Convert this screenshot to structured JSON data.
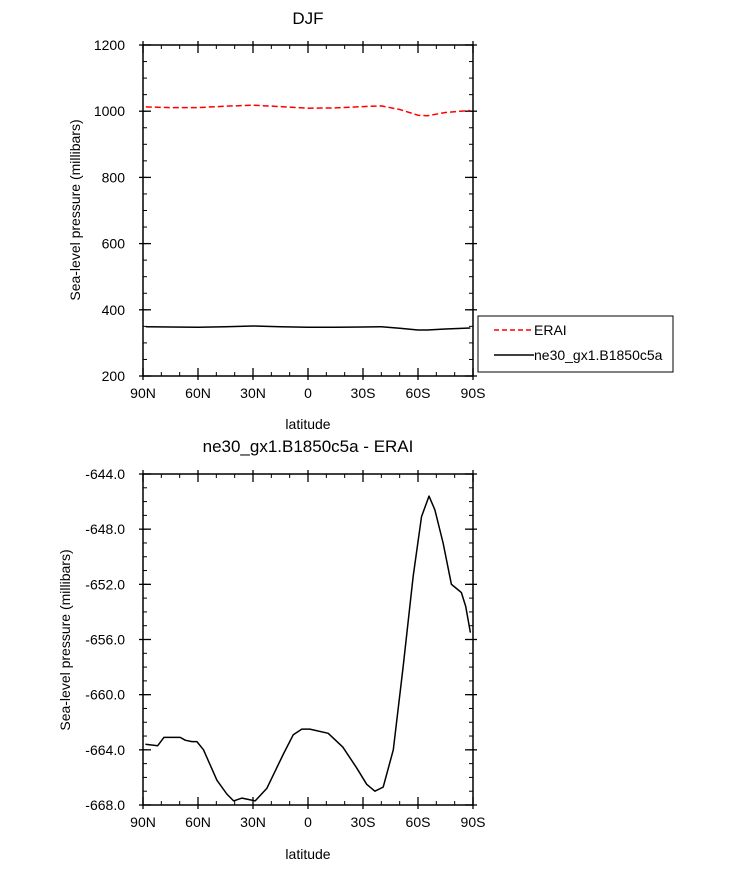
{
  "chart_data": [
    {
      "type": "line",
      "title": "DJF",
      "xlabel": "latitude",
      "ylabel": "Sea-level pressure (millibars)",
      "xlim": [
        90,
        -90
      ],
      "ylim": [
        200,
        1200
      ],
      "x_ticks": [
        90,
        60,
        30,
        0,
        -30,
        -60,
        -90
      ],
      "x_tick_labels": [
        "90N",
        "60N",
        "30N",
        "0",
        "30S",
        "60S",
        "90S"
      ],
      "y_ticks": [
        200,
        400,
        600,
        800,
        1000,
        1200
      ],
      "y_tick_labels": [
        "200",
        "400",
        "600",
        "800",
        "1000",
        "1200"
      ],
      "x_minor_step": 10,
      "y_minor_step": 50,
      "legend": {
        "placement": "right",
        "entries": [
          "ERAI",
          "ne30_gx1.B1850c5a"
        ]
      },
      "series": [
        {
          "name": "ERAI",
          "color": "#ff0000",
          "dash": true,
          "x": [
            88.5,
            75,
            60,
            45,
            30,
            15,
            0,
            -15,
            -30,
            -40,
            -50,
            -60,
            -65,
            -75,
            -88.5
          ],
          "y": [
            1013,
            1011,
            1011,
            1015,
            1018,
            1014,
            1009,
            1010,
            1014,
            1016,
            1005,
            988,
            986,
            996,
            1002
          ]
        },
        {
          "name": "ne30_gx1.B1850c5a",
          "color": "#000000",
          "dash": false,
          "x": [
            88.5,
            75,
            60,
            45,
            30,
            15,
            0,
            -15,
            -30,
            -40,
            -50,
            -60,
            -65,
            -75,
            -88.5
          ],
          "y": [
            349,
            348,
            347,
            349,
            351,
            349,
            347,
            347,
            348,
            349,
            344,
            339,
            339,
            342,
            345
          ]
        }
      ]
    },
    {
      "type": "line",
      "title": "ne30_gx1.B1850c5a - ERAI",
      "xlabel": "latitude",
      "ylabel": "Sea-level pressure (millibars)",
      "xlim": [
        90,
        -90
      ],
      "ylim": [
        -668,
        -644
      ],
      "x_ticks": [
        90,
        60,
        30,
        0,
        -30,
        -60,
        -90
      ],
      "x_tick_labels": [
        "90N",
        "60N",
        "30N",
        "0",
        "30S",
        "60S",
        "90S"
      ],
      "y_ticks": [
        -668,
        -664,
        -660,
        -656,
        -652,
        -648,
        -644
      ],
      "y_tick_labels": [
        "-668.0",
        "-664.0",
        "-660.0",
        "-656.0",
        "-652.0",
        "-648.0",
        "-644.0"
      ],
      "x_minor_step": 10,
      "y_minor_step": 1,
      "series": [
        {
          "name": "ne30_gx1.B1850c5a - ERAI",
          "color": "#000000",
          "x": [
            88.7,
            82,
            78.6,
            69.7,
            67,
            63.3,
            60.6,
            57,
            49.7,
            44.3,
            40.6,
            36,
            32.4,
            28.8,
            22.5,
            13.4,
            8,
            3.4,
            -1,
            -11,
            -19,
            -26.5,
            -32,
            -36.5,
            -41,
            -46.5,
            -51.9,
            -57.4,
            -61.9,
            -66,
            -69.2,
            -73.7,
            -78.2,
            -81,
            -83.7,
            -86,
            -88.6
          ],
          "y": [
            -663.6,
            -663.7,
            -663.1,
            -663.1,
            -663.3,
            -663.4,
            -663.4,
            -664.0,
            -666.2,
            -667.2,
            -667.7,
            -667.5,
            -667.6,
            -667.7,
            -666.8,
            -664.3,
            -662.9,
            -662.5,
            -662.5,
            -662.8,
            -663.8,
            -665.3,
            -666.5,
            -667.0,
            -666.7,
            -664.0,
            -658.0,
            -651.4,
            -647.1,
            -645.6,
            -646.6,
            -649.0,
            -652.0,
            -652.3,
            -652.6,
            -653.6,
            -655.5
          ]
        }
      ]
    }
  ]
}
